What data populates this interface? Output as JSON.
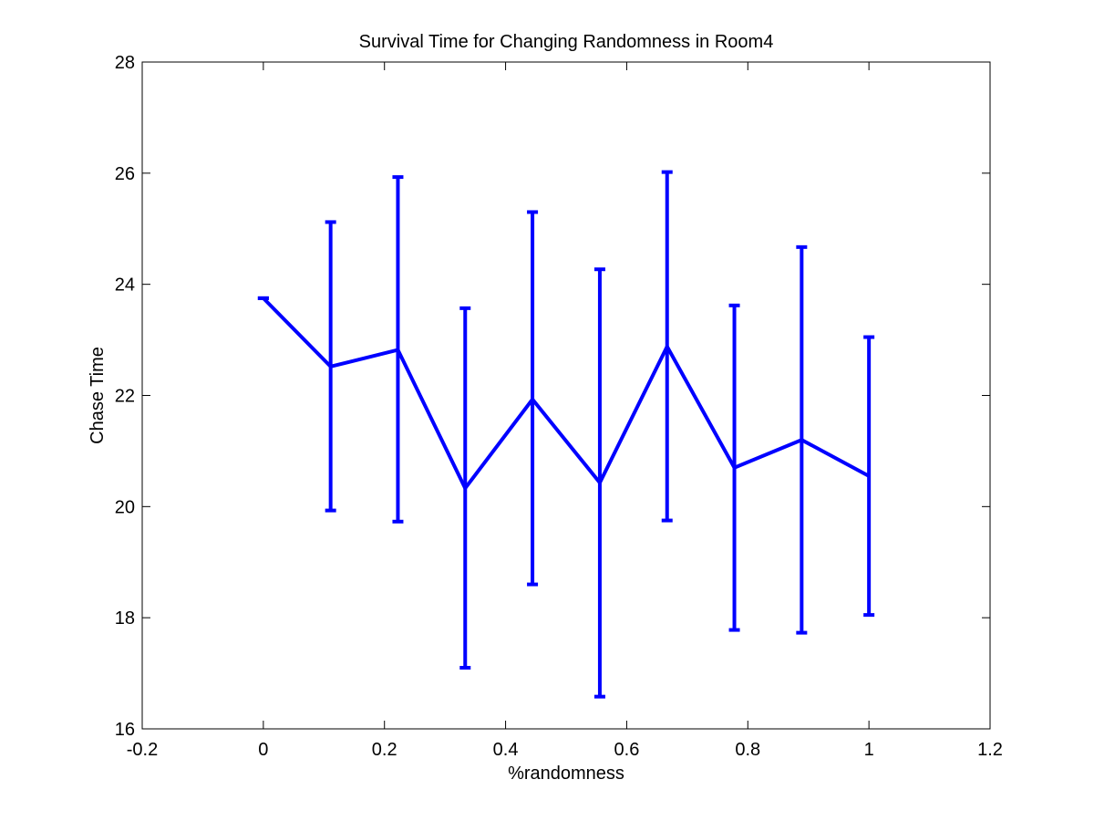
{
  "chart_data": {
    "type": "line",
    "title": "Survival Time for Changing Randomness in Room4",
    "xlabel": "%randomness",
    "ylabel": "Chase Time",
    "xlim": [
      -0.2,
      1.2
    ],
    "ylim": [
      16,
      28
    ],
    "xticks": [
      -0.2,
      0,
      0.2,
      0.4,
      0.6,
      0.8,
      1,
      1.2
    ],
    "xtick_labels": [
      "-0.2",
      "0",
      "0.2",
      "0.4",
      "0.6",
      "0.8",
      "1",
      "1.2"
    ],
    "yticks": [
      16,
      18,
      20,
      22,
      24,
      26,
      28
    ],
    "ytick_labels": [
      "16",
      "18",
      "20",
      "22",
      "24",
      "26",
      "28"
    ],
    "grid": false,
    "series": [
      {
        "color": "#0000ff",
        "error_bars": true,
        "x": [
          0,
          0.1111,
          0.2222,
          0.3333,
          0.4444,
          0.5556,
          0.6667,
          0.7778,
          0.8889,
          1
        ],
        "y": [
          23.75,
          22.52,
          22.82,
          20.33,
          21.93,
          20.43,
          22.88,
          20.7,
          21.2,
          20.55
        ],
        "err_low": [
          23.75,
          19.93,
          19.73,
          17.1,
          18.6,
          16.58,
          19.75,
          17.78,
          17.73,
          18.05
        ],
        "err_high": [
          23.75,
          25.12,
          25.93,
          23.57,
          25.3,
          24.27,
          26.02,
          23.62,
          24.67,
          23.05
        ]
      }
    ]
  }
}
